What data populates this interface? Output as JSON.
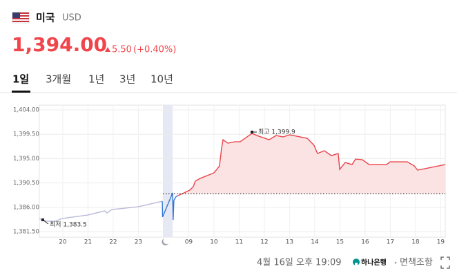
{
  "header": {
    "currency_name": "미국",
    "currency_code": "USD",
    "price": "1,394.00",
    "change": "5.50",
    "change_pct": "(+0.40%)"
  },
  "tabs": [
    "1일",
    "3개월",
    "1년",
    "3년",
    "10년"
  ],
  "footer": {
    "timestamp": "4월 16일 오후 19:09",
    "bank": "하나은행",
    "disclaimer": "면책조항"
  },
  "chart_data": {
    "type": "line",
    "xlim": [
      -0.93,
      15.18
    ],
    "ylim": [
      1380.48,
      1404.9
    ],
    "xticks": [
      {
        "value": 0,
        "label": "20"
      },
      {
        "value": 1,
        "label": "21"
      },
      {
        "value": 2,
        "label": "22"
      },
      {
        "value": 3,
        "label": "23"
      },
      {
        "value": 5,
        "label": "09"
      },
      {
        "value": 6,
        "label": "10"
      },
      {
        "value": 7,
        "label": "11"
      },
      {
        "value": 8,
        "label": "12"
      },
      {
        "value": 9,
        "label": "13"
      },
      {
        "value": 10,
        "label": "14"
      },
      {
        "value": 11,
        "label": "15"
      },
      {
        "value": 12,
        "label": "16"
      },
      {
        "value": 13,
        "label": "17"
      },
      {
        "value": 14,
        "label": "18"
      },
      {
        "value": 15,
        "label": "19"
      }
    ],
    "yticks": [
      {
        "value": 1381.5,
        "label": "1,381.50"
      },
      {
        "value": 1386,
        "label": "1,386.00"
      },
      {
        "value": 1390.5,
        "label": "1,390.50"
      },
      {
        "value": 1395,
        "label": "1,395.00"
      },
      {
        "value": 1399.5,
        "label": "1,399.50"
      },
      {
        "value": 1404,
        "label": "1,404.00"
      }
    ],
    "grid": true,
    "reference_line": 1388.5,
    "series": [
      {
        "color": "#b9b9d8",
        "x": [
          -0.93,
          -0.79,
          -0.63,
          -0.3,
          -0.03,
          0.99,
          1.67,
          1.75,
          1.95,
          2.99,
          3.95
        ],
        "values": [
          1383.9,
          1383.67,
          1383.42,
          1383.42,
          1383.93,
          1384.57,
          1385.33,
          1384.95,
          1385.59,
          1386.1,
          1387.12
        ]
      },
      {
        "color": "#2f76d6",
        "x": [
          3.95,
          3.96,
          4.36,
          4.38,
          4.41,
          4.5,
          4.58
        ],
        "values": [
          1387.12,
          1384.2,
          1388.66,
          1383.67,
          1387.3,
          1388.0,
          1388.15
        ]
      },
      {
        "color": "#e8434a",
        "fill": "#fbe3e4",
        "x": [
          4.58,
          5.04,
          5.18,
          5.26,
          5.45,
          5.73,
          6.0,
          6.22,
          6.3,
          6.36,
          6.55,
          6.82,
          7.04,
          7.23,
          7.51,
          7.78,
          8.19,
          8.47,
          8.74,
          9.01,
          9.29,
          9.7,
          9.97,
          10.11,
          10.38,
          10.66,
          10.93,
          10.99,
          11.21,
          11.48,
          11.62,
          11.89,
          12.16,
          12.85,
          12.99,
          13.67,
          13.95,
          14.08,
          14.36,
          15.18
        ],
        "values": [
          1388.15,
          1389.17,
          1389.81,
          1390.84,
          1391.34,
          1391.86,
          1392.37,
          1393.64,
          1396.84,
          1398.5,
          1397.86,
          1398.12,
          1398.12,
          1398.76,
          1399.65,
          1399.14,
          1398.5,
          1399.27,
          1399.01,
          1399.4,
          1399.14,
          1398.76,
          1397.48,
          1395.95,
          1396.46,
          1395.56,
          1395.95,
          1393.01,
          1394.28,
          1393.9,
          1394.92,
          1394.8,
          1393.9,
          1393.9,
          1394.41,
          1394.41,
          1393.64,
          1392.88,
          1393.13,
          1393.9
        ]
      }
    ],
    "annotations": [
      "최고 1,399.9",
      "최저 1,383.5"
    ]
  }
}
